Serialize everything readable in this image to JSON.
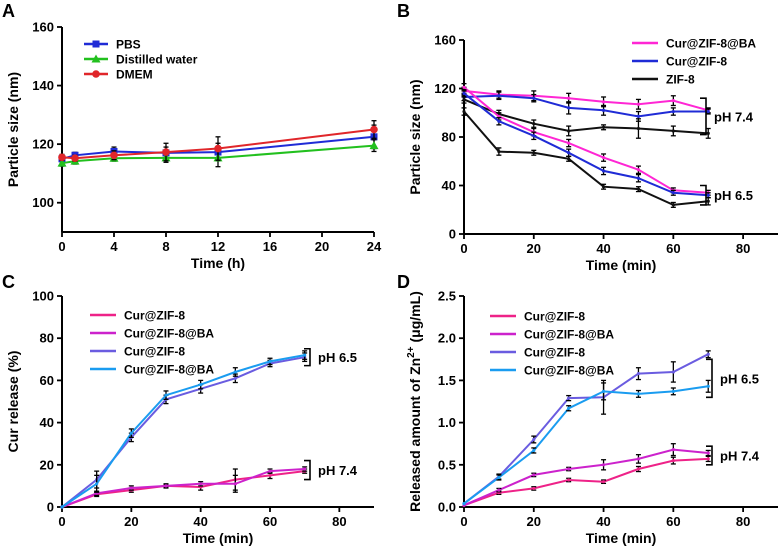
{
  "figure": {
    "colors": {
      "blue": "#1f2bd6",
      "green": "#22c01e",
      "red": "#e0262a",
      "magenta": "#ff26d4",
      "black": "#111111",
      "pink": "#ee2288",
      "purple": "#6a5ce0",
      "cyan": "#1a9cf0"
    }
  },
  "chart_data": [
    {
      "panel": "A",
      "type": "line",
      "xlabel": "Time (h)",
      "ylabel": "Particle size (nm)",
      "xlim": [
        0,
        24
      ],
      "ylim": [
        90,
        160
      ],
      "xticks": [
        0,
        4,
        8,
        12,
        16,
        20,
        24
      ],
      "yticks": [
        100,
        120,
        140,
        160
      ],
      "legend_position": "top-left",
      "series": [
        {
          "name": "PBS",
          "color": "#1f2bd6",
          "marker": "square",
          "x": [
            0,
            1,
            4,
            8,
            12,
            24
          ],
          "values": [
            115,
            116.2,
            117.5,
            117,
            117.3,
            122.5
          ],
          "errors": [
            1,
            1,
            1.5,
            2,
            3,
            4
          ]
        },
        {
          "name": "Distilled water",
          "color": "#22c01e",
          "marker": "triangle",
          "x": [
            0,
            1,
            4,
            8,
            12,
            24
          ],
          "values": [
            113.5,
            114.2,
            115.2,
            115.3,
            115.3,
            119.5
          ],
          "errors": [
            1,
            1,
            1,
            1.5,
            3,
            2
          ]
        },
        {
          "name": "DMEM",
          "color": "#e0262a",
          "marker": "circle",
          "x": [
            0,
            1,
            4,
            8,
            12,
            24
          ],
          "values": [
            115.5,
            115.2,
            116.2,
            117.3,
            118.5,
            125
          ],
          "errors": [
            1,
            1,
            1.5,
            3,
            4,
            3
          ]
        }
      ]
    },
    {
      "panel": "B",
      "type": "line",
      "xlabel": "Time (min)",
      "ylabel": "Particle size (nm)",
      "xlim": [
        0,
        90
      ],
      "ylim": [
        0,
        160
      ],
      "xticks": [
        0,
        20,
        40,
        60,
        80
      ],
      "yticks": [
        0,
        40,
        80,
        120,
        160
      ],
      "legend_position": "top-right",
      "brackets": [
        {
          "label": "pH 7.4",
          "y_range": [
            82,
            112
          ]
        },
        {
          "label": "pH 6.5",
          "y_range": [
            24,
            40
          ]
        }
      ],
      "series": [
        {
          "name": "Cur@ZIF-8@BA",
          "legend": true,
          "color": "#ff26d4",
          "x": [
            0,
            10,
            20,
            30,
            40,
            50,
            60,
            70
          ],
          "values": [
            118,
            115,
            114,
            112,
            109,
            107,
            110,
            102
          ],
          "errors": [
            3,
            3,
            4,
            4,
            4,
            4,
            4,
            2
          ]
        },
        {
          "name": "Cur@ZIF-8",
          "legend": true,
          "color": "#1f2bd6",
          "x": [
            0,
            10,
            20,
            30,
            40,
            50,
            60,
            70
          ],
          "values": [
            113,
            114,
            112,
            104,
            102,
            97,
            101,
            101
          ],
          "errors": [
            3,
            3,
            3,
            5,
            4,
            4,
            3,
            2
          ]
        },
        {
          "name": "ZIF-8",
          "legend": true,
          "color": "#111111",
          "x": [
            0,
            10,
            20,
            30,
            40,
            50,
            60,
            70
          ],
          "values": [
            111,
            99,
            91,
            85,
            88,
            87,
            85,
            83
          ],
          "errors": [
            3,
            3,
            3,
            4,
            2,
            8,
            4,
            4
          ]
        },
        {
          "name": "Cur@ZIF-8@BA",
          "legend": false,
          "color": "#ff26d4",
          "x": [
            0,
            10,
            20,
            30,
            40,
            50,
            60,
            70
          ],
          "values": [
            121,
            97,
            84,
            75,
            63,
            53,
            36,
            34
          ],
          "errors": [
            3,
            3,
            3,
            3,
            3,
            3,
            2,
            2
          ]
        },
        {
          "name": "Cur@ZIF-8",
          "legend": false,
          "color": "#1f2bd6",
          "x": [
            0,
            10,
            20,
            30,
            40,
            50,
            60,
            70
          ],
          "values": [
            116,
            93,
            81,
            67,
            52,
            46,
            34,
            32
          ],
          "errors": [
            3,
            3,
            3,
            3,
            3,
            3,
            2,
            2
          ]
        },
        {
          "name": "ZIF-8",
          "legend": false,
          "color": "#111111",
          "x": [
            0,
            10,
            20,
            30,
            40,
            50,
            60,
            70
          ],
          "values": [
            101,
            68,
            67,
            62,
            39,
            37,
            24,
            27
          ],
          "errors": [
            3,
            3,
            2,
            2,
            2,
            2,
            2,
            3
          ]
        }
      ]
    },
    {
      "panel": "C",
      "type": "line",
      "xlabel": "Time (min)",
      "ylabel": "Cur release (%)",
      "xlim": [
        0,
        90
      ],
      "ylim": [
        0,
        100
      ],
      "xticks": [
        0,
        20,
        40,
        60,
        80
      ],
      "yticks": [
        0,
        20,
        40,
        60,
        80,
        100
      ],
      "legend_position": "top-left",
      "brackets": [
        {
          "label": "pH 6.5",
          "y_range": [
            67,
            75
          ]
        },
        {
          "label": "pH 7.4",
          "y_range": [
            13,
            22
          ]
        }
      ],
      "series": [
        {
          "name": "Cur@ZIF-8",
          "color": "#ee2288",
          "x": [
            0,
            10,
            20,
            30,
            40,
            50,
            60,
            70
          ],
          "values": [
            0,
            6,
            8,
            10,
            9.5,
            13,
            15,
            17
          ],
          "errors": [
            0,
            1,
            1,
            0.5,
            1.5,
            5,
            1.5,
            1
          ]
        },
        {
          "name": "Cur@ZIF-8@BA",
          "color": "#cc22cc",
          "x": [
            0,
            10,
            20,
            30,
            40,
            50,
            60,
            70
          ],
          "values": [
            0,
            6.5,
            9,
            10,
            11,
            11,
            17,
            18
          ],
          "errors": [
            0,
            1,
            1,
            1,
            1,
            4,
            1,
            1
          ]
        },
        {
          "name": "Cur@ZIF-8",
          "color": "#6a5ce0",
          "x": [
            0,
            10,
            20,
            30,
            40,
            50,
            60,
            70
          ],
          "values": [
            0,
            13,
            33,
            51,
            56,
            61,
            68,
            71
          ],
          "errors": [
            0,
            4,
            2,
            2,
            2,
            2,
            1.5,
            2
          ]
        },
        {
          "name": "Cur@ZIF-8@BA",
          "color": "#1a9cf0",
          "x": [
            0,
            10,
            20,
            30,
            40,
            50,
            60,
            70
          ],
          "values": [
            0,
            11,
            35,
            53,
            58,
            64,
            69,
            72
          ],
          "errors": [
            0,
            4,
            2,
            2,
            2,
            2,
            1.5,
            2
          ]
        }
      ]
    },
    {
      "panel": "D",
      "type": "line",
      "xlabel": "Time (min)",
      "ylabel_prefix": "Released amount of Zn",
      "ylabel_sup": "2+",
      "ylabel_suffix": " (μg/mL)",
      "xlim": [
        0,
        90
      ],
      "ylim": [
        0,
        2.5
      ],
      "xticks": [
        0,
        20,
        40,
        60,
        80
      ],
      "yticks": [
        0.0,
        0.5,
        1.0,
        1.5,
        2.0,
        2.5
      ],
      "legend_position": "top-left",
      "brackets": [
        {
          "label": "pH 6.5",
          "y_range": [
            1.3,
            1.75
          ]
        },
        {
          "label": "pH 7.4",
          "y_range": [
            0.5,
            0.72
          ]
        }
      ],
      "series": [
        {
          "name": "Cur@ZIF-8",
          "color": "#ee2288",
          "x": [
            0,
            10,
            20,
            30,
            40,
            50,
            60,
            70
          ],
          "values": [
            0.02,
            0.17,
            0.22,
            0.32,
            0.3,
            0.45,
            0.55,
            0.57
          ],
          "errors": [
            0,
            0.02,
            0.02,
            0.02,
            0.02,
            0.03,
            0.04,
            0.03
          ]
        },
        {
          "name": "Cur@ZIF-8@BA",
          "color": "#cc22cc",
          "x": [
            0,
            10,
            20,
            30,
            40,
            50,
            60,
            70
          ],
          "values": [
            0.02,
            0.2,
            0.38,
            0.45,
            0.5,
            0.57,
            0.68,
            0.64
          ],
          "errors": [
            0,
            0.02,
            0.02,
            0.02,
            0.06,
            0.05,
            0.07,
            0.03
          ]
        },
        {
          "name": "Cur@ZIF-8",
          "color": "#6a5ce0",
          "x": [
            0,
            10,
            20,
            30,
            40,
            50,
            60,
            70
          ],
          "values": [
            0.04,
            0.36,
            0.8,
            1.29,
            1.3,
            1.58,
            1.6,
            1.81
          ],
          "errors": [
            0,
            0.03,
            0.04,
            0.03,
            0.2,
            0.07,
            0.12,
            0.04
          ]
        },
        {
          "name": "Cur@ZIF-8@BA",
          "color": "#1a9cf0",
          "x": [
            0,
            10,
            20,
            30,
            40,
            50,
            60,
            70
          ],
          "values": [
            0.04,
            0.35,
            0.67,
            1.17,
            1.37,
            1.34,
            1.37,
            1.43
          ],
          "errors": [
            0,
            0.03,
            0.03,
            0.03,
            0.1,
            0.04,
            0.04,
            0.07
          ]
        }
      ]
    }
  ]
}
